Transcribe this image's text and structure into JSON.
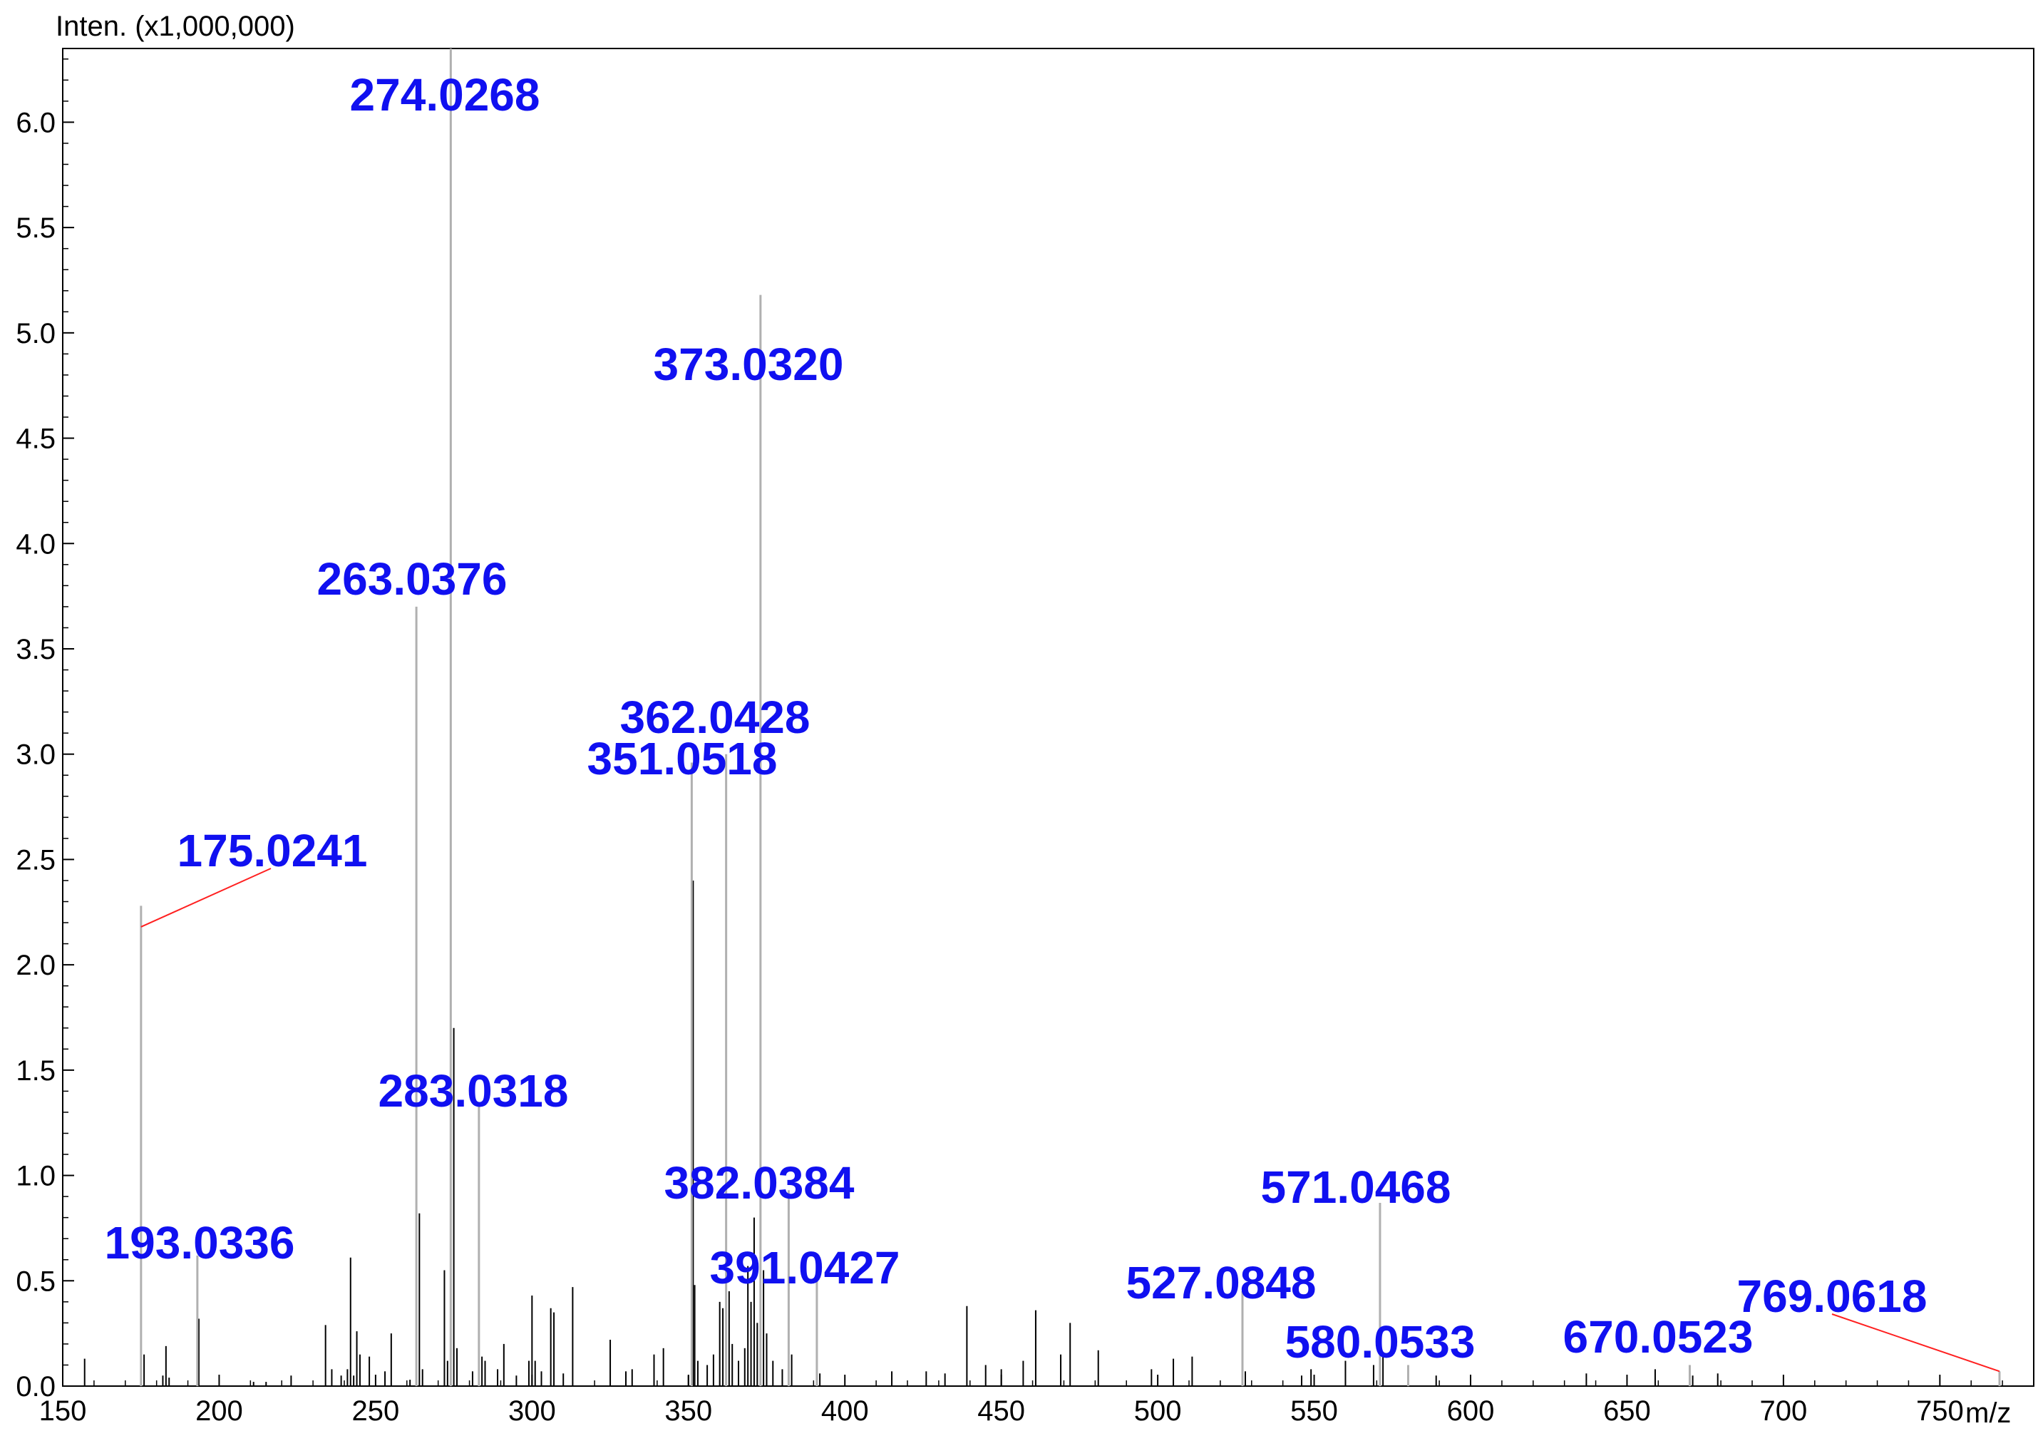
{
  "chart_data": {
    "type": "bar",
    "ylabel": "Inten. (x1,000,000)",
    "xlabel": "m/z",
    "xlim": [
      150,
      780
    ],
    "ylim": [
      0,
      6.35
    ],
    "x_ticks": [
      "150",
      "200",
      "250",
      "300",
      "350",
      "400",
      "450",
      "500",
      "550",
      "600",
      "650",
      "700",
      "750"
    ],
    "y_ticks": [
      "0.0",
      "0.5",
      "1.0",
      "1.5",
      "2.0",
      "2.5",
      "3.0",
      "3.5",
      "4.0",
      "4.5",
      "5.0",
      "5.5",
      "6.0"
    ],
    "grid": false,
    "colors": {
      "peak": "#000000",
      "labeled_peak": "#b0b0b0",
      "label": "#1010f0",
      "leader": "#ff2020",
      "frame": "#000000"
    },
    "labeled_peaks": [
      {
        "x": 175.0241,
        "y": 2.28,
        "label": "175.0241"
      },
      {
        "x": 193.0336,
        "y": 0.62,
        "label": "193.0336"
      },
      {
        "x": 263.0376,
        "y": 3.7,
        "label": "263.0376"
      },
      {
        "x": 274.0268,
        "y": 6.35,
        "label": "274.0268"
      },
      {
        "x": 283.0318,
        "y": 1.33,
        "label": "283.0318"
      },
      {
        "x": 351.0518,
        "y": 2.96,
        "label": "351.0518"
      },
      {
        "x": 362.0428,
        "y": 3.0,
        "label": "362.0428"
      },
      {
        "x": 373.032,
        "y": 5.18,
        "label": "373.0320"
      },
      {
        "x": 382.0384,
        "y": 0.93,
        "label": "382.0384"
      },
      {
        "x": 391.0427,
        "y": 0.57,
        "label": "391.0427"
      },
      {
        "x": 527.0848,
        "y": 0.45,
        "label": "527.0848"
      },
      {
        "x": 571.0468,
        "y": 0.87,
        "label": "571.0468"
      },
      {
        "x": 580.0533,
        "y": 0.1,
        "label": "580.0533"
      },
      {
        "x": 670.0523,
        "y": 0.1,
        "label": "670.0523"
      },
      {
        "x": 769.0618,
        "y": 0.07,
        "label": "769.0618"
      }
    ],
    "peaks": [
      {
        "x": 157,
        "y": 0.13
      },
      {
        "x": 176,
        "y": 0.15
      },
      {
        "x": 182,
        "y": 0.05
      },
      {
        "x": 183,
        "y": 0.19
      },
      {
        "x": 184,
        "y": 0.04
      },
      {
        "x": 193.5,
        "y": 0.32
      },
      {
        "x": 211,
        "y": 0.02
      },
      {
        "x": 215,
        "y": 0.02
      },
      {
        "x": 223,
        "y": 0.05
      },
      {
        "x": 234,
        "y": 0.29
      },
      {
        "x": 236,
        "y": 0.08
      },
      {
        "x": 239,
        "y": 0.05
      },
      {
        "x": 241,
        "y": 0.08
      },
      {
        "x": 242,
        "y": 0.61
      },
      {
        "x": 243,
        "y": 0.05
      },
      {
        "x": 244,
        "y": 0.26
      },
      {
        "x": 245,
        "y": 0.15
      },
      {
        "x": 248,
        "y": 0.14
      },
      {
        "x": 253,
        "y": 0.07
      },
      {
        "x": 255,
        "y": 0.25
      },
      {
        "x": 261,
        "y": 0.03
      },
      {
        "x": 264,
        "y": 0.82
      },
      {
        "x": 265,
        "y": 0.08
      },
      {
        "x": 272,
        "y": 0.55
      },
      {
        "x": 273,
        "y": 0.12
      },
      {
        "x": 275,
        "y": 1.7
      },
      {
        "x": 276,
        "y": 0.18
      },
      {
        "x": 281,
        "y": 0.07
      },
      {
        "x": 284,
        "y": 0.14
      },
      {
        "x": 285,
        "y": 0.12
      },
      {
        "x": 289,
        "y": 0.08
      },
      {
        "x": 291,
        "y": 0.2
      },
      {
        "x": 295,
        "y": 0.05
      },
      {
        "x": 299,
        "y": 0.12
      },
      {
        "x": 300,
        "y": 0.43
      },
      {
        "x": 301,
        "y": 0.12
      },
      {
        "x": 303,
        "y": 0.07
      },
      {
        "x": 306,
        "y": 0.37
      },
      {
        "x": 307,
        "y": 0.35
      },
      {
        "x": 310,
        "y": 0.06
      },
      {
        "x": 313,
        "y": 0.47
      },
      {
        "x": 325,
        "y": 0.22
      },
      {
        "x": 330,
        "y": 0.07
      },
      {
        "x": 332,
        "y": 0.08
      },
      {
        "x": 339,
        "y": 0.15
      },
      {
        "x": 342,
        "y": 0.18
      },
      {
        "x": 350,
        "y": 0.05
      },
      {
        "x": 351.5,
        "y": 2.4
      },
      {
        "x": 352,
        "y": 0.48
      },
      {
        "x": 353,
        "y": 0.12
      },
      {
        "x": 356,
        "y": 0.1
      },
      {
        "x": 358,
        "y": 0.15
      },
      {
        "x": 360,
        "y": 0.4
      },
      {
        "x": 361,
        "y": 0.37
      },
      {
        "x": 363,
        "y": 0.45
      },
      {
        "x": 364,
        "y": 0.2
      },
      {
        "x": 366,
        "y": 0.12
      },
      {
        "x": 368,
        "y": 0.18
      },
      {
        "x": 369,
        "y": 0.57
      },
      {
        "x": 370,
        "y": 0.4
      },
      {
        "x": 371,
        "y": 0.8
      },
      {
        "x": 372,
        "y": 0.3
      },
      {
        "x": 374,
        "y": 0.55
      },
      {
        "x": 375,
        "y": 0.25
      },
      {
        "x": 377,
        "y": 0.12
      },
      {
        "x": 380,
        "y": 0.08
      },
      {
        "x": 383,
        "y": 0.15
      },
      {
        "x": 392,
        "y": 0.06
      },
      {
        "x": 415,
        "y": 0.07
      },
      {
        "x": 426,
        "y": 0.07
      },
      {
        "x": 432,
        "y": 0.06
      },
      {
        "x": 439,
        "y": 0.38
      },
      {
        "x": 445,
        "y": 0.1
      },
      {
        "x": 450,
        "y": 0.08
      },
      {
        "x": 457,
        "y": 0.12
      },
      {
        "x": 461,
        "y": 0.36
      },
      {
        "x": 469,
        "y": 0.15
      },
      {
        "x": 472,
        "y": 0.3
      },
      {
        "x": 481,
        "y": 0.17
      },
      {
        "x": 498,
        "y": 0.08
      },
      {
        "x": 505,
        "y": 0.13
      },
      {
        "x": 511,
        "y": 0.14
      },
      {
        "x": 528,
        "y": 0.07
      },
      {
        "x": 546,
        "y": 0.05
      },
      {
        "x": 549,
        "y": 0.08
      },
      {
        "x": 560,
        "y": 0.12
      },
      {
        "x": 569,
        "y": 0.1
      },
      {
        "x": 572,
        "y": 0.15
      },
      {
        "x": 589,
        "y": 0.05
      },
      {
        "x": 637,
        "y": 0.06
      },
      {
        "x": 659,
        "y": 0.08
      },
      {
        "x": 671,
        "y": 0.05
      },
      {
        "x": 679,
        "y": 0.06
      }
    ]
  }
}
